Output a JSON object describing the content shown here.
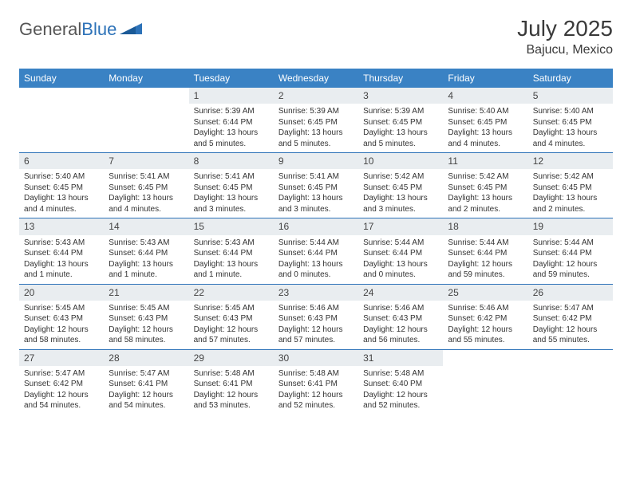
{
  "brand": {
    "part1": "General",
    "part2": "Blue"
  },
  "title": "July 2025",
  "location": "Bajucu, Mexico",
  "colors": {
    "header_bg": "#3a82c4",
    "header_text": "#ffffff",
    "daynum_bg": "#e9edf0",
    "rule": "#2d72b8",
    "text": "#333333",
    "title_text": "#3a3a3a"
  },
  "weekdays": [
    "Sunday",
    "Monday",
    "Tuesday",
    "Wednesday",
    "Thursday",
    "Friday",
    "Saturday"
  ],
  "weeks": [
    [
      {
        "empty": true
      },
      {
        "empty": true
      },
      {
        "n": "1",
        "sunrise": "Sunrise: 5:39 AM",
        "sunset": "Sunset: 6:44 PM",
        "day": "Daylight: 13 hours and 5 minutes."
      },
      {
        "n": "2",
        "sunrise": "Sunrise: 5:39 AM",
        "sunset": "Sunset: 6:45 PM",
        "day": "Daylight: 13 hours and 5 minutes."
      },
      {
        "n": "3",
        "sunrise": "Sunrise: 5:39 AM",
        "sunset": "Sunset: 6:45 PM",
        "day": "Daylight: 13 hours and 5 minutes."
      },
      {
        "n": "4",
        "sunrise": "Sunrise: 5:40 AM",
        "sunset": "Sunset: 6:45 PM",
        "day": "Daylight: 13 hours and 4 minutes."
      },
      {
        "n": "5",
        "sunrise": "Sunrise: 5:40 AM",
        "sunset": "Sunset: 6:45 PM",
        "day": "Daylight: 13 hours and 4 minutes."
      }
    ],
    [
      {
        "n": "6",
        "sunrise": "Sunrise: 5:40 AM",
        "sunset": "Sunset: 6:45 PM",
        "day": "Daylight: 13 hours and 4 minutes."
      },
      {
        "n": "7",
        "sunrise": "Sunrise: 5:41 AM",
        "sunset": "Sunset: 6:45 PM",
        "day": "Daylight: 13 hours and 4 minutes."
      },
      {
        "n": "8",
        "sunrise": "Sunrise: 5:41 AM",
        "sunset": "Sunset: 6:45 PM",
        "day": "Daylight: 13 hours and 3 minutes."
      },
      {
        "n": "9",
        "sunrise": "Sunrise: 5:41 AM",
        "sunset": "Sunset: 6:45 PM",
        "day": "Daylight: 13 hours and 3 minutes."
      },
      {
        "n": "10",
        "sunrise": "Sunrise: 5:42 AM",
        "sunset": "Sunset: 6:45 PM",
        "day": "Daylight: 13 hours and 3 minutes."
      },
      {
        "n": "11",
        "sunrise": "Sunrise: 5:42 AM",
        "sunset": "Sunset: 6:45 PM",
        "day": "Daylight: 13 hours and 2 minutes."
      },
      {
        "n": "12",
        "sunrise": "Sunrise: 5:42 AM",
        "sunset": "Sunset: 6:45 PM",
        "day": "Daylight: 13 hours and 2 minutes."
      }
    ],
    [
      {
        "n": "13",
        "sunrise": "Sunrise: 5:43 AM",
        "sunset": "Sunset: 6:44 PM",
        "day": "Daylight: 13 hours and 1 minute."
      },
      {
        "n": "14",
        "sunrise": "Sunrise: 5:43 AM",
        "sunset": "Sunset: 6:44 PM",
        "day": "Daylight: 13 hours and 1 minute."
      },
      {
        "n": "15",
        "sunrise": "Sunrise: 5:43 AM",
        "sunset": "Sunset: 6:44 PM",
        "day": "Daylight: 13 hours and 1 minute."
      },
      {
        "n": "16",
        "sunrise": "Sunrise: 5:44 AM",
        "sunset": "Sunset: 6:44 PM",
        "day": "Daylight: 13 hours and 0 minutes."
      },
      {
        "n": "17",
        "sunrise": "Sunrise: 5:44 AM",
        "sunset": "Sunset: 6:44 PM",
        "day": "Daylight: 13 hours and 0 minutes."
      },
      {
        "n": "18",
        "sunrise": "Sunrise: 5:44 AM",
        "sunset": "Sunset: 6:44 PM",
        "day": "Daylight: 12 hours and 59 minutes."
      },
      {
        "n": "19",
        "sunrise": "Sunrise: 5:44 AM",
        "sunset": "Sunset: 6:44 PM",
        "day": "Daylight: 12 hours and 59 minutes."
      }
    ],
    [
      {
        "n": "20",
        "sunrise": "Sunrise: 5:45 AM",
        "sunset": "Sunset: 6:43 PM",
        "day": "Daylight: 12 hours and 58 minutes."
      },
      {
        "n": "21",
        "sunrise": "Sunrise: 5:45 AM",
        "sunset": "Sunset: 6:43 PM",
        "day": "Daylight: 12 hours and 58 minutes."
      },
      {
        "n": "22",
        "sunrise": "Sunrise: 5:45 AM",
        "sunset": "Sunset: 6:43 PM",
        "day": "Daylight: 12 hours and 57 minutes."
      },
      {
        "n": "23",
        "sunrise": "Sunrise: 5:46 AM",
        "sunset": "Sunset: 6:43 PM",
        "day": "Daylight: 12 hours and 57 minutes."
      },
      {
        "n": "24",
        "sunrise": "Sunrise: 5:46 AM",
        "sunset": "Sunset: 6:43 PM",
        "day": "Daylight: 12 hours and 56 minutes."
      },
      {
        "n": "25",
        "sunrise": "Sunrise: 5:46 AM",
        "sunset": "Sunset: 6:42 PM",
        "day": "Daylight: 12 hours and 55 minutes."
      },
      {
        "n": "26",
        "sunrise": "Sunrise: 5:47 AM",
        "sunset": "Sunset: 6:42 PM",
        "day": "Daylight: 12 hours and 55 minutes."
      }
    ],
    [
      {
        "n": "27",
        "sunrise": "Sunrise: 5:47 AM",
        "sunset": "Sunset: 6:42 PM",
        "day": "Daylight: 12 hours and 54 minutes."
      },
      {
        "n": "28",
        "sunrise": "Sunrise: 5:47 AM",
        "sunset": "Sunset: 6:41 PM",
        "day": "Daylight: 12 hours and 54 minutes."
      },
      {
        "n": "29",
        "sunrise": "Sunrise: 5:48 AM",
        "sunset": "Sunset: 6:41 PM",
        "day": "Daylight: 12 hours and 53 minutes."
      },
      {
        "n": "30",
        "sunrise": "Sunrise: 5:48 AM",
        "sunset": "Sunset: 6:41 PM",
        "day": "Daylight: 12 hours and 52 minutes."
      },
      {
        "n": "31",
        "sunrise": "Sunrise: 5:48 AM",
        "sunset": "Sunset: 6:40 PM",
        "day": "Daylight: 12 hours and 52 minutes."
      },
      {
        "empty": true
      },
      {
        "empty": true
      }
    ]
  ]
}
